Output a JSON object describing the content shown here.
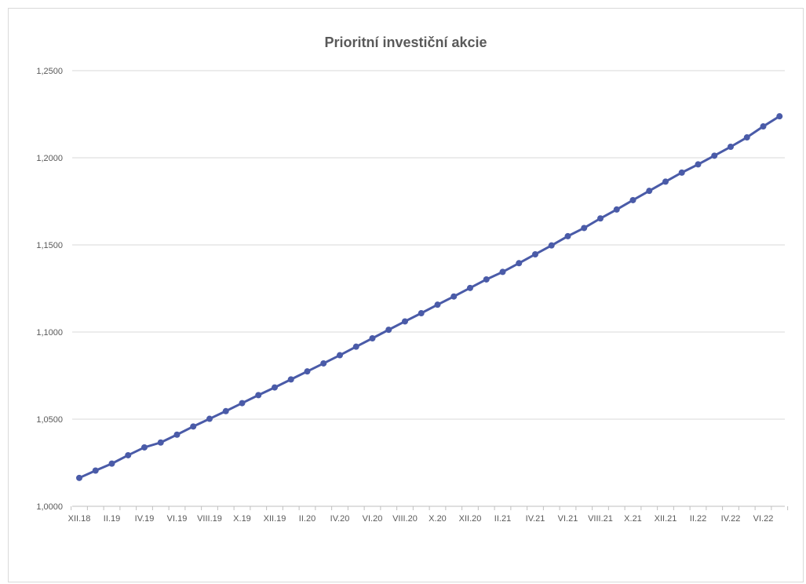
{
  "chart_data": {
    "type": "line",
    "title": "Prioritní investiční akcie",
    "xlabel": "",
    "ylabel": "",
    "ylim": [
      1.0,
      1.25
    ],
    "y_ticks": [
      "1,0000",
      "1,0500",
      "1,1000",
      "1,1500",
      "1,2000",
      "1,2500"
    ],
    "x_tick_labels": [
      "XII.18",
      "II.19",
      "IV.19",
      "VI.19",
      "VIII.19",
      "X.19",
      "XII.19",
      "II.20",
      "IV.20",
      "VI.20",
      "VIII.20",
      "X.20",
      "XII.20",
      "II.21",
      "IV.21",
      "VI.21",
      "VIII.21",
      "X.21",
      "XII.21",
      "II.22",
      "IV.22",
      "VI.22"
    ],
    "categories": [
      "XII.18",
      "I.19",
      "II.19",
      "III.19",
      "IV.19",
      "V.19",
      "VI.19",
      "VII.19",
      "VIII.19",
      "IX.19",
      "X.19",
      "XI.19",
      "XII.19",
      "I.20",
      "II.20",
      "III.20",
      "IV.20",
      "V.20",
      "VI.20",
      "VII.20",
      "VIII.20",
      "IX.20",
      "X.20",
      "XI.20",
      "XII.20",
      "I.21",
      "II.21",
      "III.21",
      "IV.21",
      "V.21",
      "VI.21",
      "VII.21",
      "VIII.21",
      "IX.21",
      "X.21",
      "XI.21",
      "XII.21",
      "I.22",
      "II.22",
      "III.22",
      "IV.22",
      "V.22",
      "VI.22",
      "VII.22"
    ],
    "series": [
      {
        "color": "#4a5ba8",
        "values": [
          1.0163,
          1.0205,
          1.0245,
          1.0293,
          1.0338,
          1.0366,
          1.0411,
          1.0458,
          1.0502,
          1.0546,
          1.0592,
          1.0638,
          1.0682,
          1.0728,
          1.0774,
          1.082,
          1.0867,
          1.0916,
          1.0964,
          1.1013,
          1.1061,
          1.1108,
          1.1157,
          1.1204,
          1.1253,
          1.1302,
          1.1345,
          1.1395,
          1.1446,
          1.1497,
          1.155,
          1.1597,
          1.1652,
          1.1703,
          1.1757,
          1.181,
          1.1863,
          1.1915,
          1.1962,
          1.2012,
          1.2063,
          1.2117,
          1.218,
          1.2238
        ]
      }
    ],
    "grid": true,
    "legend": "none"
  }
}
